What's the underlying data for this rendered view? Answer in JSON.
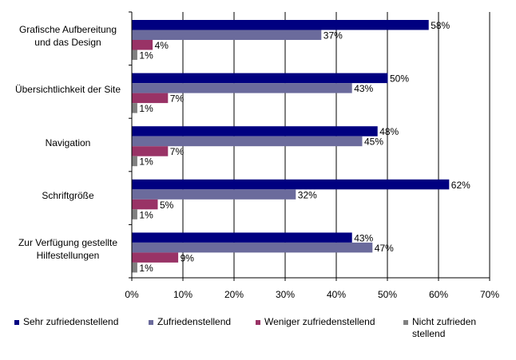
{
  "chart_data": {
    "type": "bar",
    "orientation": "horizontal",
    "categories": [
      "Grafische Aufbereitung\nund das Design",
      "Übersichtlichkeit der Site",
      "Navigation",
      "Schriftgröße",
      "Zur Verfügung gestellte\nHilfestellungen"
    ],
    "series": [
      {
        "name": "Sehr zufriedenstellend",
        "color": "#000080",
        "values": [
          58,
          50,
          48,
          62,
          43
        ],
        "labels": [
          "58%",
          "50%",
          "48%",
          "62%",
          "43%"
        ]
      },
      {
        "name": "Zufriedenstellend",
        "color": "#6B6B9C",
        "values": [
          37,
          43,
          45,
          32,
          47
        ],
        "labels": [
          "37%",
          "43%",
          "45%",
          "32%",
          "47%"
        ]
      },
      {
        "name": "Weniger zufriedenstellend",
        "color": "#993366",
        "values": [
          4,
          7,
          7,
          5,
          9
        ],
        "labels": [
          "4%",
          "7%",
          "7%",
          "5%",
          "9%"
        ]
      },
      {
        "name": "Nicht zufrieden\nstellend",
        "color": "#808080",
        "values": [
          1,
          1,
          1,
          1,
          1
        ],
        "labels": [
          "1%",
          "1%",
          "1%",
          "1%",
          "1%"
        ]
      }
    ],
    "xlim": [
      0,
      70
    ],
    "xticks": [
      "0%",
      "10%",
      "20%",
      "30%",
      "40%",
      "50%",
      "60%",
      "70%"
    ],
    "grid": true,
    "legend_position": "bottom"
  }
}
